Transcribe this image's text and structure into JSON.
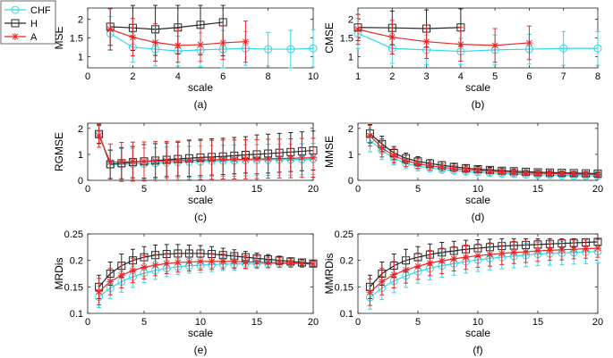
{
  "colors": {
    "CHF": "#33d6e6",
    "H": "#262626",
    "A": "#e82828"
  },
  "legend": {
    "placement": "top-left",
    "entries": [
      {
        "name": "CHF",
        "marker": "circle"
      },
      {
        "name": "H",
        "marker": "square"
      },
      {
        "name": "A",
        "marker": "star"
      }
    ]
  },
  "chart_data": [
    {
      "id": "a",
      "type": "line",
      "caption": "(a)",
      "xlabel": "scale",
      "ylabel": "MSE",
      "xlim": [
        0,
        10
      ],
      "ylim": [
        0.7,
        2.3
      ],
      "xticks": [
        0,
        2,
        4,
        6,
        8,
        10
      ],
      "yticks": [
        1,
        1.5,
        2
      ],
      "series": [
        {
          "name": "CHF",
          "x": [
            1,
            2,
            3,
            4,
            5,
            6,
            7,
            8,
            9,
            10
          ],
          "values": [
            1.62,
            1.25,
            1.2,
            1.15,
            1.18,
            1.2,
            1.22,
            1.2,
            1.2,
            1.22
          ],
          "err": [
            0.45,
            0.4,
            0.45,
            0.4,
            0.45,
            0.5,
            0.45,
            0.45,
            0.5,
            0.5
          ]
        },
        {
          "name": "H",
          "x": [
            1,
            2,
            3,
            4,
            5,
            6
          ],
          "values": [
            1.8,
            1.77,
            1.73,
            1.78,
            1.85,
            1.92
          ],
          "err": [
            0.5,
            0.6,
            0.7,
            0.7,
            0.8,
            0.9
          ]
        },
        {
          "name": "A",
          "x": [
            1,
            2,
            3,
            4,
            5,
            6,
            7
          ],
          "values": [
            1.73,
            1.52,
            1.38,
            1.3,
            1.32,
            1.37,
            1.4
          ],
          "err": [
            0.55,
            0.5,
            0.5,
            0.45,
            0.45,
            0.45,
            0.55
          ]
        }
      ]
    },
    {
      "id": "b",
      "type": "line",
      "caption": "(b)",
      "xlabel": "scale",
      "ylabel": "CMSE",
      "xlim": [
        1,
        8
      ],
      "ylim": [
        0.7,
        2.3
      ],
      "xticks": [
        1,
        2,
        3,
        4,
        5,
        6,
        7,
        8
      ],
      "yticks": [
        1,
        1.5,
        2
      ],
      "series": [
        {
          "name": "CHF",
          "x": [
            1,
            2,
            3,
            4,
            5,
            6,
            7,
            8
          ],
          "values": [
            1.62,
            1.22,
            1.18,
            1.14,
            1.18,
            1.2,
            1.22,
            1.22
          ],
          "err": [
            0.4,
            0.4,
            0.4,
            0.35,
            0.4,
            0.4,
            0.45,
            0.45
          ]
        },
        {
          "name": "H",
          "x": [
            1,
            2,
            3,
            4
          ],
          "values": [
            1.78,
            1.77,
            1.75,
            1.78
          ],
          "err": [
            0.35,
            0.45,
            0.5,
            0.5
          ]
        },
        {
          "name": "A",
          "x": [
            1,
            2,
            3,
            4,
            5,
            6
          ],
          "values": [
            1.73,
            1.52,
            1.4,
            1.33,
            1.3,
            1.37
          ],
          "err": [
            0.4,
            0.45,
            0.45,
            0.45,
            0.45,
            0.45
          ]
        }
      ]
    },
    {
      "id": "c",
      "type": "line",
      "caption": "(c)",
      "xlabel": "scale",
      "ylabel": "RGMSE",
      "xlim": [
        0,
        20
      ],
      "ylim": [
        0,
        2.2
      ],
      "xticks": [
        0,
        5,
        10,
        15,
        20
      ],
      "yticks": [
        0,
        1,
        2
      ],
      "series": [
        {
          "name": "CHF",
          "x": [
            1,
            2,
            3,
            4,
            5,
            6,
            7,
            8,
            9,
            10,
            11,
            12,
            13,
            14,
            15,
            16,
            17,
            18,
            19,
            20
          ],
          "values": [
            1.75,
            0.6,
            0.62,
            0.63,
            0.64,
            0.66,
            0.68,
            0.7,
            0.71,
            0.72,
            0.74,
            0.75,
            0.76,
            0.77,
            0.78,
            0.79,
            0.8,
            0.8,
            0.81,
            0.82
          ],
          "err": [
            0.35,
            0.55,
            0.6,
            0.6,
            0.6,
            0.6,
            0.6,
            0.6,
            0.6,
            0.6,
            0.6,
            0.6,
            0.6,
            0.6,
            0.6,
            0.6,
            0.6,
            0.6,
            0.6,
            0.6
          ]
        },
        {
          "name": "H",
          "x": [
            1,
            2,
            3,
            4,
            5,
            6,
            7,
            8,
            9,
            10,
            11,
            12,
            13,
            14,
            15,
            16,
            17,
            18,
            19,
            20
          ],
          "values": [
            1.78,
            0.62,
            0.66,
            0.7,
            0.73,
            0.76,
            0.79,
            0.82,
            0.85,
            0.88,
            0.9,
            0.92,
            0.95,
            0.98,
            1.0,
            1.03,
            1.06,
            1.09,
            1.12,
            1.15
          ],
          "err": [
            0.35,
            0.55,
            0.6,
            0.6,
            0.65,
            0.65,
            0.65,
            0.65,
            0.7,
            0.7,
            0.7,
            0.7,
            0.7,
            0.7,
            0.75,
            0.75,
            0.75,
            0.75,
            0.75,
            0.75
          ]
        },
        {
          "name": "A",
          "x": [
            1,
            2,
            3,
            4,
            5,
            6,
            7,
            8,
            9,
            10,
            11,
            12,
            13,
            14,
            15,
            16,
            17,
            18,
            19,
            20
          ],
          "values": [
            1.72,
            0.7,
            0.71,
            0.72,
            0.73,
            0.74,
            0.75,
            0.76,
            0.77,
            0.78,
            0.79,
            0.8,
            0.8,
            0.81,
            0.82,
            0.83,
            0.84,
            0.85,
            0.86,
            0.87
          ],
          "err": [
            0.45,
            0.7,
            0.75,
            0.75,
            0.75,
            0.75,
            0.75,
            0.75,
            0.75,
            0.75,
            0.75,
            0.75,
            0.75,
            0.75,
            0.75,
            0.75,
            0.75,
            0.75,
            0.75,
            0.75
          ]
        }
      ]
    },
    {
      "id": "d",
      "type": "line",
      "caption": "(d)",
      "xlabel": "scale",
      "ylabel": "MMSE",
      "xlim": [
        0,
        20
      ],
      "ylim": [
        0,
        2.2
      ],
      "xticks": [
        0,
        5,
        10,
        15,
        20
      ],
      "yticks": [
        0,
        1,
        2
      ],
      "series": [
        {
          "name": "CHF",
          "x": [
            1,
            2,
            3,
            4,
            5,
            6,
            7,
            8,
            9,
            10,
            11,
            12,
            13,
            14,
            15,
            16,
            17,
            18,
            19,
            20
          ],
          "values": [
            1.55,
            1.15,
            0.85,
            0.65,
            0.55,
            0.48,
            0.42,
            0.38,
            0.34,
            0.31,
            0.28,
            0.26,
            0.24,
            0.22,
            0.21,
            0.2,
            0.19,
            0.18,
            0.17,
            0.16
          ],
          "err": [
            0.45,
            0.35,
            0.25,
            0.2,
            0.18,
            0.15,
            0.14,
            0.12,
            0.11,
            0.1,
            0.1,
            0.09,
            0.09,
            0.08,
            0.08,
            0.08,
            0.07,
            0.07,
            0.07,
            0.07
          ]
        },
        {
          "name": "H",
          "x": [
            1,
            2,
            3,
            4,
            5,
            6,
            7,
            8,
            9,
            10,
            11,
            12,
            13,
            14,
            15,
            16,
            17,
            18,
            19,
            20
          ],
          "values": [
            1.8,
            1.4,
            1.05,
            0.85,
            0.73,
            0.65,
            0.58,
            0.52,
            0.47,
            0.43,
            0.4,
            0.37,
            0.35,
            0.33,
            0.31,
            0.3,
            0.29,
            0.28,
            0.27,
            0.26
          ],
          "err": [
            0.35,
            0.3,
            0.25,
            0.2,
            0.18,
            0.15,
            0.14,
            0.12,
            0.11,
            0.1,
            0.1,
            0.09,
            0.09,
            0.08,
            0.08,
            0.08,
            0.07,
            0.07,
            0.07,
            0.07
          ]
        },
        {
          "name": "A",
          "x": [
            1,
            2,
            3,
            4,
            5,
            6,
            7,
            8,
            9,
            10,
            11,
            12,
            13,
            14,
            15,
            16,
            17,
            18,
            19,
            20
          ],
          "values": [
            1.72,
            1.25,
            0.95,
            0.75,
            0.64,
            0.56,
            0.5,
            0.45,
            0.41,
            0.38,
            0.35,
            0.32,
            0.3,
            0.28,
            0.27,
            0.26,
            0.25,
            0.24,
            0.23,
            0.22
          ],
          "err": [
            0.4,
            0.35,
            0.28,
            0.22,
            0.18,
            0.15,
            0.14,
            0.12,
            0.11,
            0.1,
            0.1,
            0.09,
            0.09,
            0.08,
            0.08,
            0.08,
            0.07,
            0.07,
            0.07,
            0.07
          ]
        }
      ]
    },
    {
      "id": "e",
      "type": "line",
      "caption": "(e)",
      "xlabel": "scale",
      "ylabel": "MRDis",
      "xlim": [
        0,
        20
      ],
      "ylim": [
        0.1,
        0.25
      ],
      "xticks": [
        0,
        5,
        10,
        15,
        20
      ],
      "yticks": [
        0.1,
        0.15,
        0.2,
        0.25
      ],
      "series": [
        {
          "name": "CHF",
          "x": [
            1,
            2,
            3,
            4,
            5,
            6,
            7,
            8,
            9,
            10,
            11,
            12,
            13,
            14,
            15,
            16,
            17,
            18,
            19,
            20
          ],
          "values": [
            0.131,
            0.148,
            0.16,
            0.169,
            0.176,
            0.181,
            0.185,
            0.188,
            0.19,
            0.191,
            0.192,
            0.193,
            0.193,
            0.194,
            0.194,
            0.194,
            0.194,
            0.194,
            0.194,
            0.193
          ],
          "err": [
            0.02,
            0.02,
            0.02,
            0.02,
            0.018,
            0.017,
            0.016,
            0.015,
            0.014,
            0.014,
            0.013,
            0.012,
            0.011,
            0.01,
            0.009,
            0.008,
            0.007,
            0.006,
            0.006,
            0.005
          ]
        },
        {
          "name": "H",
          "x": [
            1,
            2,
            3,
            4,
            5,
            6,
            7,
            8,
            9,
            10,
            11,
            12,
            13,
            14,
            15,
            16,
            17,
            18,
            19,
            20
          ],
          "values": [
            0.15,
            0.175,
            0.19,
            0.2,
            0.206,
            0.21,
            0.212,
            0.213,
            0.213,
            0.213,
            0.212,
            0.21,
            0.208,
            0.206,
            0.204,
            0.202,
            0.2,
            0.198,
            0.196,
            0.194
          ],
          "err": [
            0.022,
            0.022,
            0.022,
            0.021,
            0.02,
            0.019,
            0.018,
            0.017,
            0.016,
            0.015,
            0.014,
            0.013,
            0.012,
            0.011,
            0.01,
            0.009,
            0.008,
            0.007,
            0.006,
            0.005
          ]
        },
        {
          "name": "A",
          "x": [
            1,
            2,
            3,
            4,
            5,
            6,
            7,
            8,
            9,
            10,
            11,
            12,
            13,
            14,
            15,
            16,
            17,
            18,
            19,
            20
          ],
          "values": [
            0.141,
            0.16,
            0.172,
            0.181,
            0.187,
            0.191,
            0.194,
            0.196,
            0.197,
            0.198,
            0.198,
            0.198,
            0.198,
            0.197,
            0.197,
            0.196,
            0.196,
            0.195,
            0.194,
            0.193
          ],
          "err": [
            0.025,
            0.025,
            0.024,
            0.023,
            0.022,
            0.02,
            0.019,
            0.018,
            0.017,
            0.016,
            0.015,
            0.014,
            0.013,
            0.012,
            0.011,
            0.01,
            0.009,
            0.008,
            0.007,
            0.006
          ]
        }
      ]
    },
    {
      "id": "f",
      "type": "line",
      "caption": "(f)",
      "xlabel": "scale",
      "ylabel": "MMRDis",
      "xlim": [
        0,
        20
      ],
      "ylim": [
        0.1,
        0.25
      ],
      "xticks": [
        0,
        5,
        10,
        15,
        20
      ],
      "yticks": [
        0.1,
        0.15,
        0.2,
        0.25
      ],
      "series": [
        {
          "name": "CHF",
          "x": [
            1,
            2,
            3,
            4,
            5,
            6,
            7,
            8,
            9,
            10,
            11,
            12,
            13,
            14,
            15,
            16,
            17,
            18,
            19,
            20
          ],
          "values": [
            0.13,
            0.148,
            0.161,
            0.171,
            0.179,
            0.185,
            0.19,
            0.194,
            0.198,
            0.201,
            0.204,
            0.206,
            0.208,
            0.21,
            0.212,
            0.213,
            0.214,
            0.215,
            0.216,
            0.217
          ],
          "err": [
            0.022,
            0.022,
            0.022,
            0.022,
            0.022,
            0.022,
            0.022,
            0.022,
            0.022,
            0.022,
            0.022,
            0.022,
            0.022,
            0.022,
            0.022,
            0.022,
            0.022,
            0.022,
            0.022,
            0.022
          ]
        },
        {
          "name": "H",
          "x": [
            1,
            2,
            3,
            4,
            5,
            6,
            7,
            8,
            9,
            10,
            11,
            12,
            13,
            14,
            15,
            16,
            17,
            18,
            19,
            20
          ],
          "values": [
            0.15,
            0.175,
            0.19,
            0.2,
            0.206,
            0.211,
            0.215,
            0.218,
            0.221,
            0.223,
            0.225,
            0.227,
            0.228,
            0.229,
            0.23,
            0.231,
            0.232,
            0.233,
            0.234,
            0.235
          ],
          "err": [
            0.022,
            0.022,
            0.022,
            0.021,
            0.02,
            0.02,
            0.019,
            0.018,
            0.017,
            0.016,
            0.015,
            0.014,
            0.013,
            0.012,
            0.011,
            0.01,
            0.009,
            0.008,
            0.007,
            0.006
          ]
        },
        {
          "name": "A",
          "x": [
            1,
            2,
            3,
            4,
            5,
            6,
            7,
            8,
            9,
            10,
            11,
            12,
            13,
            14,
            15,
            16,
            17,
            18,
            19,
            20
          ],
          "values": [
            0.14,
            0.16,
            0.173,
            0.182,
            0.189,
            0.195,
            0.199,
            0.203,
            0.206,
            0.209,
            0.211,
            0.213,
            0.215,
            0.216,
            0.218,
            0.219,
            0.22,
            0.221,
            0.222,
            0.223
          ],
          "err": [
            0.025,
            0.025,
            0.025,
            0.025,
            0.025,
            0.024,
            0.024,
            0.023,
            0.023,
            0.022,
            0.022,
            0.021,
            0.021,
            0.02,
            0.02,
            0.019,
            0.019,
            0.018,
            0.018,
            0.017
          ]
        }
      ]
    }
  ]
}
